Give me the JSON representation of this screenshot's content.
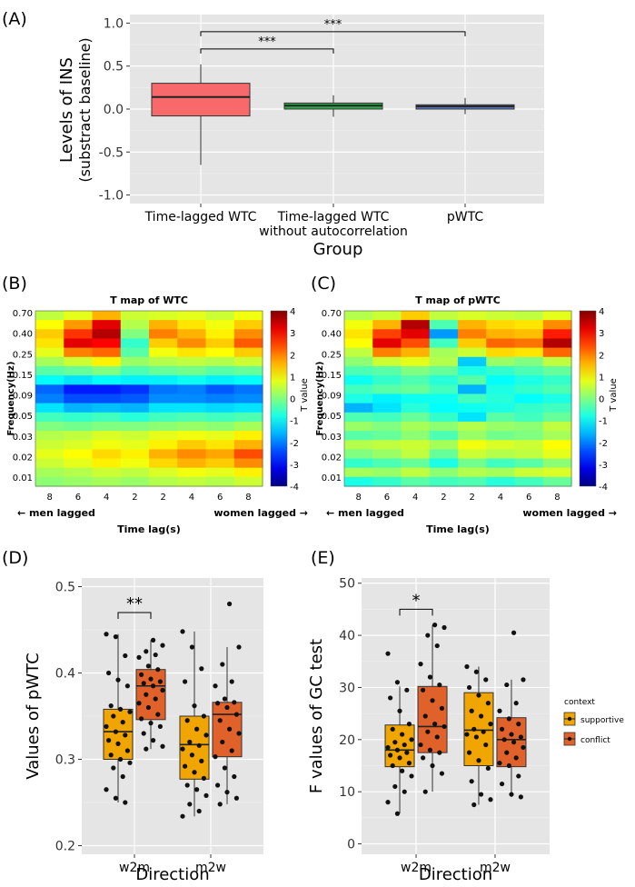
{
  "colors": {
    "panel_bg": "#e5e5e5",
    "grid": "#ffffff",
    "red": "#f8696b",
    "green": "#2ea84a",
    "blue": "#5b7fc4",
    "supportive": "#f0a500",
    "conflict": "#e0622a"
  },
  "chart_data": [
    {
      "panel": "(A)",
      "type": "box",
      "ylabel": "Levels of INS",
      "ylabel2": "(substract baseline)",
      "xlabel": "Group",
      "categories": [
        "Time-lagged WTC",
        "Time-lagged WTC",
        "pWTC"
      ],
      "categories_line2": [
        "",
        "without autocorrelation",
        ""
      ],
      "ylim": [
        -1.1,
        1.1
      ],
      "yticks": [
        1.0,
        0.5,
        0.0,
        -0.5,
        -1.0
      ],
      "ytick_labels": [
        "1.0",
        "0.5",
        "0.0",
        "-0.5",
        "-1.0"
      ],
      "boxes": [
        {
          "q1": -0.08,
          "median": 0.14,
          "q3": 0.3,
          "lo": -0.65,
          "hi": 0.52,
          "color": "red"
        },
        {
          "q1": 0.0,
          "median": 0.04,
          "q3": 0.07,
          "lo": -0.09,
          "hi": 0.16,
          "color": "green"
        },
        {
          "q1": 0.0,
          "median": 0.03,
          "q3": 0.05,
          "lo": -0.06,
          "hi": 0.13,
          "color": "blue"
        }
      ],
      "significance": [
        {
          "from": 0,
          "to": 1,
          "y": 0.7,
          "label": "***"
        },
        {
          "from": 0,
          "to": 2,
          "y": 0.9,
          "label": "***"
        }
      ]
    },
    {
      "panel": "(B)",
      "type": "heatmap",
      "title": "T map of WTC",
      "ylabel": "Frequency(Hz)",
      "xlabel": "Time lag(s)",
      "left_note": "← men lagged",
      "right_note": "women lagged →",
      "yticks": [
        "0.70",
        "0.40",
        "0.25",
        "0.15",
        "0.09",
        "0.05",
        "0.03",
        "0.02",
        "0.01"
      ],
      "xticks": [
        "8",
        "6",
        "4",
        "2",
        "2",
        "4",
        "6",
        "8"
      ],
      "colorbar_label": "T value",
      "colorbar_ticks": [
        "4",
        "3",
        "2",
        "1",
        "0",
        "-1",
        "-2",
        "-3",
        "-4"
      ],
      "rows": [
        [
          0.5,
          0.8,
          1.6,
          0.6,
          0.7,
          0.8,
          0.6,
          0.9
        ],
        [
          1.0,
          1.8,
          3.2,
          0.4,
          1.6,
          1.2,
          0.9,
          1.4
        ],
        [
          1.4,
          2.6,
          3.6,
          0.0,
          2.0,
          1.6,
          1.1,
          1.9
        ],
        [
          1.2,
          3.2,
          3.0,
          -0.6,
          1.4,
          1.9,
          1.4,
          2.3
        ],
        [
          0.8,
          2.0,
          2.2,
          -0.3,
          0.9,
          1.2,
          1.0,
          1.4
        ],
        [
          0.3,
          0.6,
          1.1,
          0.2,
          0.4,
          0.5,
          0.4,
          0.6
        ],
        [
          -0.3,
          -0.2,
          0.0,
          -0.4,
          -0.2,
          -0.1,
          -0.3,
          -0.2
        ],
        [
          -1.0,
          -1.2,
          -1.0,
          -1.1,
          -1.1,
          -0.9,
          -1.1,
          -1.0
        ],
        [
          -2.2,
          -2.8,
          -2.8,
          -2.6,
          -2.1,
          -2.0,
          -2.3,
          -2.1
        ],
        [
          -2.0,
          -2.4,
          -2.4,
          -2.3,
          -1.9,
          -1.9,
          -2.0,
          -1.9
        ],
        [
          -1.2,
          -1.6,
          -1.5,
          -1.6,
          -1.2,
          -1.2,
          -1.3,
          -1.2
        ],
        [
          -0.5,
          -0.6,
          -0.5,
          -0.7,
          -0.5,
          -0.4,
          -0.5,
          -0.4
        ],
        [
          0.0,
          -0.1,
          0.0,
          0.0,
          0.1,
          0.2,
          0.1,
          0.3
        ],
        [
          0.4,
          0.5,
          0.7,
          0.6,
          0.8,
          0.9,
          0.8,
          1.1
        ],
        [
          0.6,
          0.7,
          0.9,
          0.8,
          1.1,
          1.4,
          1.2,
          1.6
        ],
        [
          0.8,
          1.0,
          1.3,
          1.1,
          1.6,
          1.9,
          1.7,
          2.4
        ],
        [
          0.6,
          0.8,
          1.1,
          0.9,
          1.3,
          1.6,
          1.4,
          1.9
        ],
        [
          0.3,
          0.4,
          0.6,
          0.5,
          0.7,
          0.9,
          0.8,
          1.1
        ],
        [
          0.1,
          0.2,
          0.3,
          0.2,
          0.4,
          0.5,
          0.4,
          0.6
        ]
      ]
    },
    {
      "panel": "(C)",
      "type": "heatmap",
      "title": "T map of pWTC",
      "ylabel": "Frequency(Hz)",
      "xlabel": "Time lag(s)",
      "left_note": "← men lagged",
      "right_note": "women lagged →",
      "yticks": [
        "0.70",
        "0.40",
        "0.25",
        "0.15",
        "0.09",
        "0.05",
        "0.03",
        "0.02",
        "0.01"
      ],
      "xticks": [
        "8",
        "6",
        "4",
        "2",
        "2",
        "4",
        "6",
        "8"
      ],
      "colorbar_label": "T value",
      "colorbar_ticks": [
        "4",
        "3",
        "2",
        "1",
        "0",
        "-1",
        "-2",
        "-3",
        "-4"
      ],
      "rows": [
        [
          0.4,
          0.6,
          1.4,
          0.5,
          0.7,
          0.6,
          0.5,
          0.8
        ],
        [
          0.9,
          1.6,
          3.6,
          -0.4,
          1.6,
          1.3,
          1.2,
          1.9
        ],
        [
          1.2,
          2.5,
          3.2,
          -1.8,
          2.0,
          1.6,
          1.5,
          2.8
        ],
        [
          1.0,
          3.2,
          2.4,
          -0.5,
          1.4,
          2.2,
          2.1,
          3.6
        ],
        [
          0.5,
          2.0,
          1.6,
          0.3,
          0.6,
          1.3,
          1.2,
          2.2
        ],
        [
          0.1,
          0.6,
          0.8,
          0.4,
          -1.4,
          0.2,
          0.0,
          0.5
        ],
        [
          -0.4,
          -0.3,
          0.0,
          -0.2,
          -0.8,
          -0.6,
          -0.4,
          -0.2
        ],
        [
          -0.9,
          -0.6,
          -0.4,
          -0.7,
          -0.3,
          -1.0,
          -0.8,
          -0.6
        ],
        [
          -0.5,
          -0.3,
          -0.2,
          -0.5,
          -1.6,
          -0.8,
          -0.6,
          -0.4
        ],
        [
          -0.8,
          -1.1,
          -0.9,
          -0.9,
          -0.5,
          -0.7,
          -1.0,
          -0.8
        ],
        [
          -1.6,
          -1.2,
          -0.7,
          -1.0,
          -0.9,
          -0.8,
          -0.6,
          -0.5
        ],
        [
          -0.4,
          -0.5,
          -0.2,
          -0.6,
          -1.2,
          -0.3,
          -0.5,
          -0.2
        ],
        [
          0.2,
          0.0,
          0.3,
          0.1,
          0.4,
          0.2,
          0.1,
          0.5
        ],
        [
          -0.3,
          -0.2,
          0.1,
          -0.4,
          0.2,
          -0.1,
          0.0,
          0.3
        ],
        [
          0.4,
          0.5,
          0.6,
          0.3,
          0.9,
          0.7,
          0.6,
          1.0
        ],
        [
          0.0,
          0.2,
          0.5,
          -0.2,
          0.6,
          0.4,
          0.5,
          0.8
        ],
        [
          -0.6,
          -0.4,
          -0.2,
          -0.8,
          -0.1,
          -0.5,
          -0.3,
          0.1
        ],
        [
          0.3,
          0.2,
          0.5,
          0.1,
          0.4,
          0.3,
          0.6,
          0.7
        ],
        [
          -0.8,
          -0.6,
          -0.3,
          -0.5,
          -0.4,
          -0.7,
          -0.5,
          -0.2
        ]
      ]
    },
    {
      "panel": "(D)",
      "type": "box",
      "ylabel": "Values of pWTC",
      "xlabel": "Direction",
      "categories": [
        "w2m",
        "m2w"
      ],
      "ylim": [
        0.19,
        0.51
      ],
      "yticks": [
        0.5,
        0.4,
        0.3,
        0.2
      ],
      "ytick_labels": [
        "0.5",
        "0.4",
        "0.3",
        "0.2"
      ],
      "series": [
        {
          "name": "supportive",
          "boxes": [
            {
              "q1": 0.3,
              "median": 0.332,
              "q3": 0.358,
              "lo": 0.25,
              "hi": 0.445
            },
            {
              "q1": 0.277,
              "median": 0.317,
              "q3": 0.35,
              "lo": 0.234,
              "hi": 0.448
            }
          ]
        },
        {
          "name": "conflict",
          "boxes": [
            {
              "q1": 0.346,
              "median": 0.385,
              "q3": 0.404,
              "lo": 0.312,
              "hi": 0.438
            },
            {
              "q1": 0.303,
              "median": 0.352,
              "q3": 0.366,
              "lo": 0.248,
              "hi": 0.43
            }
          ]
        }
      ],
      "points": [
        [
          [
            0.445,
            0.442,
            0.42,
            0.4,
            0.392,
            0.385,
            0.362,
            0.358,
            0.355,
            0.35,
            0.343,
            0.338,
            0.332,
            0.328,
            0.322,
            0.318,
            0.31,
            0.305,
            0.3,
            0.296,
            0.29,
            0.28,
            0.265,
            0.255,
            0.25
          ],
          [
            0.438,
            0.432,
            0.425,
            0.421,
            0.418,
            0.408,
            0.404,
            0.398,
            0.393,
            0.39,
            0.388,
            0.385,
            0.38,
            0.375,
            0.37,
            0.365,
            0.36,
            0.352,
            0.347,
            0.342,
            0.338,
            0.33,
            0.322,
            0.315,
            0.312
          ]
        ],
        [
          [
            0.448,
            0.43,
            0.405,
            0.39,
            0.362,
            0.35,
            0.345,
            0.335,
            0.328,
            0.32,
            0.316,
            0.312,
            0.305,
            0.298,
            0.292,
            0.285,
            0.278,
            0.27,
            0.265,
            0.258,
            0.248,
            0.24,
            0.234
          ],
          [
            0.48,
            0.43,
            0.41,
            0.39,
            0.385,
            0.37,
            0.366,
            0.365,
            0.36,
            0.352,
            0.345,
            0.335,
            0.33,
            0.32,
            0.31,
            0.303,
            0.29,
            0.28,
            0.27,
            0.262,
            0.255,
            0.248
          ]
        ]
      ],
      "significance": [
        {
          "group": 0,
          "y": 0.47,
          "label": "**"
        }
      ]
    },
    {
      "panel": "(E)",
      "type": "box",
      "ylabel": "F values of GC test",
      "xlabel": "Direction",
      "categories": [
        "w2m",
        "m2w"
      ],
      "ylim": [
        -2,
        51
      ],
      "yticks": [
        50,
        40,
        30,
        20,
        10,
        0
      ],
      "ytick_labels": [
        "50",
        "40",
        "30",
        "20",
        "10",
        "0"
      ],
      "series": [
        {
          "name": "supportive",
          "boxes": [
            {
              "q1": 14.8,
              "median": 18.0,
              "q3": 22.8,
              "lo": 5.8,
              "hi": 30.2
            },
            {
              "q1": 15.0,
              "median": 21.8,
              "q3": 29.0,
              "lo": 7.5,
              "hi": 34.0
            }
          ]
        },
        {
          "name": "conflict",
          "boxes": [
            {
              "q1": 17.5,
              "median": 22.5,
              "q3": 30.2,
              "lo": 10.0,
              "hi": 42.0
            },
            {
              "q1": 14.8,
              "median": 20.0,
              "q3": 24.2,
              "lo": 9.0,
              "hi": 31.5
            }
          ]
        }
      ],
      "points": [
        [
          [
            36.5,
            31.0,
            29.5,
            28.0,
            25.5,
            23.0,
            22.0,
            21.0,
            20.0,
            19.5,
            19.0,
            18.5,
            18.0,
            17.5,
            17.0,
            16.5,
            15.5,
            15.0,
            14.0,
            13.0,
            11.0,
            10.0,
            8.0,
            5.8
          ],
          [
            42.0,
            41.5,
            40.0,
            38.0,
            34.5,
            32.0,
            30.5,
            29.5,
            27.5,
            26.0,
            24.5,
            23.0,
            22.5,
            21.5,
            20.5,
            19.0,
            18.0,
            17.5,
            16.5,
            15.0,
            13.5,
            10.0
          ]
        ],
        [
          [
            34.0,
            33.0,
            31.5,
            30.0,
            28.5,
            27.0,
            25.5,
            24.5,
            23.0,
            22.0,
            21.5,
            21.0,
            20.5,
            19.0,
            17.5,
            16.0,
            14.5,
            12.0,
            9.5,
            8.5,
            7.5
          ],
          [
            40.5,
            31.5,
            30.5,
            27.0,
            25.5,
            24.0,
            23.0,
            22.0,
            21.0,
            20.5,
            20.0,
            19.5,
            18.5,
            17.5,
            16.5,
            15.5,
            15.0,
            13.0,
            11.5,
            9.5,
            9.0
          ]
        ]
      ],
      "significance": [
        {
          "group": 0,
          "y": 45.0,
          "label": "*"
        }
      ],
      "legend": {
        "title": "context",
        "items": [
          "supportive",
          "conflict"
        ],
        "position": "right"
      }
    }
  ]
}
